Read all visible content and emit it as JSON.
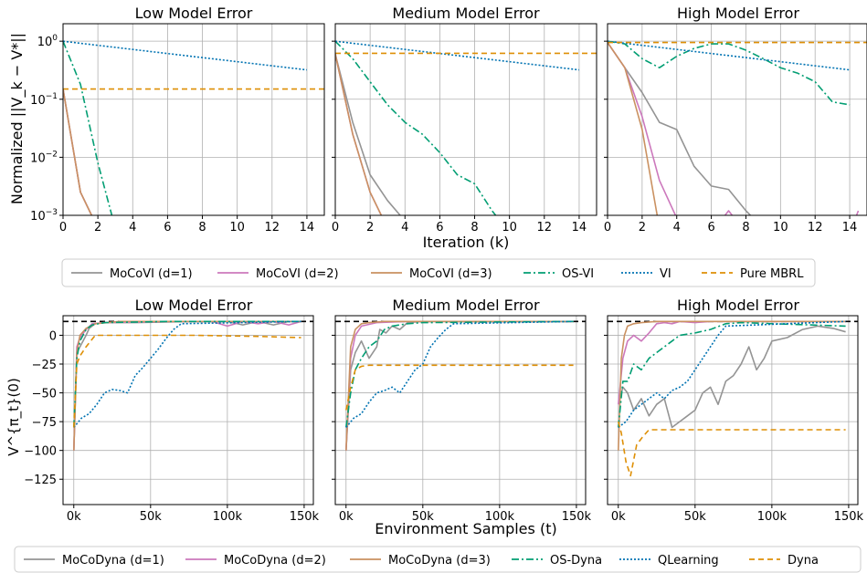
{
  "colors": {
    "d1": "#949494",
    "d2": "#cc78bc",
    "d3": "#ca9161",
    "os": "#029e73",
    "vi": "#0173b2",
    "mbrl": "#de8f05"
  },
  "top_ylabel": "Normalized ||V_k − V*||",
  "top_xlabel": "Iteration (k)",
  "bottom_ylabel": "V^{π_t}(0)",
  "bottom_xlabel": "Environment Samples (t)",
  "legend_top": [
    "MoCoVI (d=1)",
    "MoCoVI (d=2)",
    "MoCoVI (d=3)",
    "OS-VI",
    "VI",
    "Pure MBRL"
  ],
  "legend_bottom": [
    "MoCoDyna (d=1)",
    "MoCoDyna (d=2)",
    "MoCoDyna (d=3)",
    "OS-Dyna",
    "QLearning",
    "Dyna"
  ],
  "chart_data": [
    {
      "type": "line",
      "title": "Low Model Error",
      "yscale": "log",
      "xlim": [
        0,
        15
      ],
      "ylim": [
        0.001,
        2
      ],
      "xticks": [
        0,
        2,
        4,
        6,
        8,
        10,
        12,
        14
      ],
      "yticks": [
        {
          "v": 0.001,
          "label": "10^-3"
        },
        {
          "v": 0.01,
          "label": "10^-2"
        },
        {
          "v": 0.1,
          "label": "10^-1"
        },
        {
          "v": 1,
          "label": "10^0"
        }
      ],
      "series": [
        {
          "key": "d1",
          "style": "solid",
          "x": [
            0,
            1,
            2
          ],
          "y": [
            0.15,
            0.0025,
            0.0006
          ]
        },
        {
          "key": "d2",
          "style": "solid",
          "x": [
            0,
            1,
            2
          ],
          "y": [
            0.15,
            0.0025,
            0.0006
          ]
        },
        {
          "key": "d3",
          "style": "solid",
          "x": [
            0,
            1,
            2
          ],
          "y": [
            0.15,
            0.0025,
            0.0006
          ]
        },
        {
          "key": "os",
          "style": "dashdot",
          "x": [
            0,
            1,
            2,
            3
          ],
          "y": [
            1.0,
            0.18,
            0.008,
            0.0006
          ]
        },
        {
          "key": "vi",
          "style": "dotted",
          "x": [
            0,
            14
          ],
          "y": [
            1.0,
            0.32
          ]
        },
        {
          "key": "mbrl",
          "style": "dashed",
          "x": [
            0,
            15
          ],
          "y": [
            0.15,
            0.15
          ]
        }
      ]
    },
    {
      "type": "line",
      "title": "Medium Model Error",
      "yscale": "log",
      "xlim": [
        0,
        15
      ],
      "ylim": [
        0.001,
        2
      ],
      "xticks": [
        0,
        2,
        4,
        6,
        8,
        10,
        12,
        14
      ],
      "series": [
        {
          "key": "d1",
          "style": "solid",
          "x": [
            0,
            1,
            2,
            3,
            4
          ],
          "y": [
            0.6,
            0.04,
            0.005,
            0.0018,
            0.0008
          ]
        },
        {
          "key": "d2",
          "style": "solid",
          "x": [
            0,
            1,
            2,
            3
          ],
          "y": [
            0.6,
            0.025,
            0.0025,
            0.0006
          ]
        },
        {
          "key": "d3",
          "style": "solid",
          "x": [
            0,
            1,
            2,
            3
          ],
          "y": [
            0.6,
            0.025,
            0.0025,
            0.0006
          ]
        },
        {
          "key": "os",
          "style": "dashdot",
          "x": [
            0,
            1,
            2,
            3,
            4,
            5,
            6,
            7,
            8,
            9,
            10
          ],
          "y": [
            1.0,
            0.5,
            0.2,
            0.08,
            0.04,
            0.025,
            0.012,
            0.005,
            0.0035,
            0.0012,
            0.0005
          ]
        },
        {
          "key": "vi",
          "style": "dotted",
          "x": [
            0,
            14
          ],
          "y": [
            1.0,
            0.32
          ]
        },
        {
          "key": "mbrl",
          "style": "dashed",
          "x": [
            0,
            15
          ],
          "y": [
            0.62,
            0.62
          ]
        }
      ]
    },
    {
      "type": "line",
      "title": "High Model Error",
      "yscale": "log",
      "xlim": [
        0,
        15
      ],
      "ylim": [
        0.001,
        2
      ],
      "xticks": [
        0,
        2,
        4,
        6,
        8,
        10,
        12,
        14
      ],
      "series": [
        {
          "key": "d1",
          "style": "solid",
          "x": [
            0,
            1,
            2,
            3,
            4,
            5,
            6,
            7,
            8,
            9
          ],
          "y": [
            0.95,
            0.35,
            0.13,
            0.04,
            0.03,
            0.007,
            0.0032,
            0.0028,
            0.0012,
            0.0006
          ]
        },
        {
          "key": "d2",
          "style": "solid",
          "x": [
            0,
            1,
            2,
            3,
            4,
            5,
            6,
            7,
            8,
            14,
            14.5
          ],
          "y": [
            0.95,
            0.35,
            0.05,
            0.004,
            0.0009,
            0.0005,
            0.0005,
            0.0012,
            0.0005,
            0.0005,
            0.0012
          ]
        },
        {
          "key": "d3",
          "style": "solid",
          "x": [
            0,
            1,
            2,
            3
          ],
          "y": [
            0.95,
            0.35,
            0.03,
            0.0006
          ]
        },
        {
          "key": "os",
          "style": "dashdot",
          "x": [
            0,
            1,
            2,
            3,
            4,
            5,
            6,
            7,
            8,
            9,
            10,
            11,
            12,
            13,
            14
          ],
          "y": [
            1.0,
            0.9,
            0.5,
            0.35,
            0.55,
            0.75,
            0.9,
            0.9,
            0.7,
            0.5,
            0.35,
            0.28,
            0.2,
            0.09,
            0.08
          ]
        },
        {
          "key": "vi",
          "style": "dotted",
          "x": [
            0,
            14
          ],
          "y": [
            1.0,
            0.32
          ]
        },
        {
          "key": "mbrl",
          "style": "dashed",
          "x": [
            0,
            15
          ],
          "y": [
            0.95,
            0.95
          ]
        }
      ]
    },
    {
      "type": "line",
      "title": "Low Model Error",
      "yscale": "linear",
      "xlim": [
        -7000,
        156000
      ],
      "ylim": [
        -147,
        17
      ],
      "xticks": [
        {
          "v": 0,
          "label": "0k"
        },
        {
          "v": 50000,
          "label": "50k"
        },
        {
          "v": 100000,
          "label": "100k"
        },
        {
          "v": 150000,
          "label": "150k"
        }
      ],
      "yticks": [
        -125,
        -100,
        -75,
        -50,
        -25,
        0
      ],
      "optimal": 12,
      "series": [
        {
          "key": "d1",
          "style": "solid",
          "x": [
            0,
            2000,
            4000,
            6000,
            8000,
            10000,
            14000,
            20000,
            40000,
            80000,
            100000,
            110000,
            120000,
            130000,
            140000,
            148000
          ],
          "y": [
            -100,
            -15,
            -10,
            -5,
            0,
            6,
            10,
            11,
            11,
            12,
            12,
            9,
            12,
            9,
            12,
            12
          ]
        },
        {
          "key": "d2",
          "style": "solid",
          "x": [
            0,
            2000,
            4000,
            8000,
            12000,
            20000,
            60000,
            90000,
            100000,
            110000,
            120000,
            130000,
            140000,
            148000
          ],
          "y": [
            -100,
            -10,
            -2,
            5,
            10,
            11,
            12,
            12,
            8,
            12,
            10,
            12,
            9,
            12
          ]
        },
        {
          "key": "d3",
          "style": "solid",
          "x": [
            0,
            2000,
            4000,
            8000,
            14000,
            30000,
            148000
          ],
          "y": [
            -100,
            -15,
            0,
            6,
            10,
            12,
            12
          ]
        },
        {
          "key": "os",
          "style": "dashdot",
          "x": [
            0,
            2000,
            4000,
            8000,
            12000,
            20000,
            60000,
            148000
          ],
          "y": [
            -80,
            -20,
            -5,
            5,
            9,
            11,
            12,
            12
          ]
        },
        {
          "key": "vi",
          "style": "dotted",
          "x": [
            0,
            5000,
            10000,
            15000,
            20000,
            25000,
            30000,
            35000,
            40000,
            45000,
            50000,
            55000,
            60000,
            65000,
            70000,
            148000
          ],
          "y": [
            -80,
            -72,
            -68,
            -60,
            -50,
            -47,
            -48,
            -50,
            -35,
            -28,
            -20,
            -12,
            -3,
            5,
            10,
            12
          ]
        },
        {
          "key": "mbrl",
          "style": "dashed",
          "x": [
            0,
            2000,
            4000,
            8000,
            14000,
            30000,
            80000,
            120000,
            148000
          ],
          "y": [
            -80,
            -25,
            -18,
            -10,
            0,
            0,
            0,
            -1,
            -2
          ]
        }
      ]
    },
    {
      "type": "line",
      "title": "Medium Model Error",
      "yscale": "linear",
      "xlim": [
        -7000,
        156000
      ],
      "ylim": [
        -147,
        17
      ],
      "xticks": [
        {
          "v": 0,
          "label": "0k"
        },
        {
          "v": 50000,
          "label": "50k"
        },
        {
          "v": 100000,
          "label": "100k"
        },
        {
          "v": 150000,
          "label": "150k"
        }
      ],
      "optimal": 12,
      "series": [
        {
          "key": "d1",
          "style": "solid",
          "x": [
            0,
            3000,
            6000,
            10000,
            15000,
            20000,
            22000,
            26000,
            30000,
            35000,
            40000,
            50000,
            148000
          ],
          "y": [
            -100,
            -30,
            -15,
            -5,
            -20,
            -10,
            5,
            2,
            8,
            5,
            11,
            12,
            12
          ]
        },
        {
          "key": "d2",
          "style": "solid",
          "x": [
            0,
            3000,
            6000,
            10000,
            20000,
            40000,
            148000
          ],
          "y": [
            -100,
            -20,
            0,
            8,
            11,
            12,
            12
          ]
        },
        {
          "key": "d3",
          "style": "solid",
          "x": [
            0,
            3000,
            6000,
            10000,
            15000,
            25000,
            148000
          ],
          "y": [
            -100,
            -10,
            5,
            10,
            11,
            12,
            12
          ]
        },
        {
          "key": "os",
          "style": "dashdot",
          "x": [
            0,
            3000,
            6000,
            10000,
            15000,
            20000,
            25000,
            30000,
            40000,
            50000,
            148000
          ],
          "y": [
            -80,
            -50,
            -30,
            -20,
            -10,
            -5,
            5,
            8,
            10,
            11,
            12
          ]
        },
        {
          "key": "vi",
          "style": "dotted",
          "x": [
            0,
            5000,
            10000,
            15000,
            20000,
            25000,
            30000,
            35000,
            40000,
            45000,
            50000,
            55000,
            60000,
            65000,
            70000,
            148000
          ],
          "y": [
            -80,
            -72,
            -68,
            -58,
            -50,
            -48,
            -45,
            -50,
            -40,
            -30,
            -25,
            -10,
            -2,
            5,
            10,
            12
          ]
        },
        {
          "key": "mbrl",
          "style": "dashed",
          "x": [
            0,
            3000,
            6000,
            10000,
            15000,
            30000,
            148000
          ],
          "y": [
            -65,
            -45,
            -30,
            -27,
            -26,
            -26,
            -26
          ]
        }
      ]
    },
    {
      "type": "line",
      "title": "High Model Error",
      "yscale": "linear",
      "xlim": [
        -7000,
        156000
      ],
      "ylim": [
        -147,
        17
      ],
      "xticks": [
        {
          "v": 0,
          "label": "0k"
        },
        {
          "v": 50000,
          "label": "50k"
        },
        {
          "v": 100000,
          "label": "100k"
        },
        {
          "v": 150000,
          "label": "150k"
        }
      ],
      "optimal": 12,
      "series": [
        {
          "key": "d1",
          "style": "solid",
          "x": [
            0,
            3000,
            6000,
            10000,
            15000,
            20000,
            25000,
            30000,
            35000,
            40000,
            45000,
            50000,
            55000,
            60000,
            65000,
            70000,
            75000,
            80000,
            85000,
            90000,
            95000,
            100000,
            110000,
            120000,
            130000,
            140000,
            148000
          ],
          "y": [
            -60,
            -45,
            -50,
            -65,
            -55,
            -70,
            -60,
            -55,
            -80,
            -75,
            -70,
            -65,
            -50,
            -45,
            -60,
            -40,
            -35,
            -25,
            -10,
            -30,
            -20,
            -5,
            -2,
            5,
            8,
            6,
            3
          ]
        },
        {
          "key": "d2",
          "style": "solid",
          "x": [
            0,
            3000,
            6000,
            10000,
            15000,
            20000,
            25000,
            30000,
            35000,
            40000,
            50000,
            60000,
            148000
          ],
          "y": [
            -60,
            -20,
            -5,
            0,
            -5,
            2,
            10,
            11,
            10,
            12,
            11,
            12,
            12
          ]
        },
        {
          "key": "d3",
          "style": "solid",
          "x": [
            0,
            2000,
            4000,
            6000,
            10000,
            15000,
            25000,
            148000
          ],
          "y": [
            -100,
            -20,
            0,
            8,
            10,
            11,
            12,
            12
          ]
        },
        {
          "key": "os",
          "style": "dashdot",
          "x": [
            0,
            3000,
            6000,
            10000,
            15000,
            20000,
            25000,
            30000,
            35000,
            40000,
            50000,
            60000,
            70000,
            80000,
            148000
          ],
          "y": [
            -80,
            -40,
            -40,
            -25,
            -30,
            -20,
            -15,
            -10,
            -5,
            0,
            2,
            5,
            10,
            11,
            8
          ]
        },
        {
          "key": "vi",
          "style": "dotted",
          "x": [
            0,
            5000,
            10000,
            15000,
            20000,
            25000,
            30000,
            35000,
            40000,
            45000,
            50000,
            55000,
            60000,
            65000,
            70000,
            148000
          ],
          "y": [
            -80,
            -75,
            -65,
            -60,
            -55,
            -50,
            -55,
            -48,
            -45,
            -40,
            -30,
            -20,
            -10,
            0,
            8,
            12
          ]
        },
        {
          "key": "mbrl",
          "style": "dashed",
          "x": [
            0,
            2000,
            5000,
            8000,
            12000,
            16000,
            20000,
            148000
          ],
          "y": [
            -75,
            -85,
            -110,
            -122,
            -95,
            -88,
            -82,
            -82
          ]
        }
      ]
    }
  ]
}
